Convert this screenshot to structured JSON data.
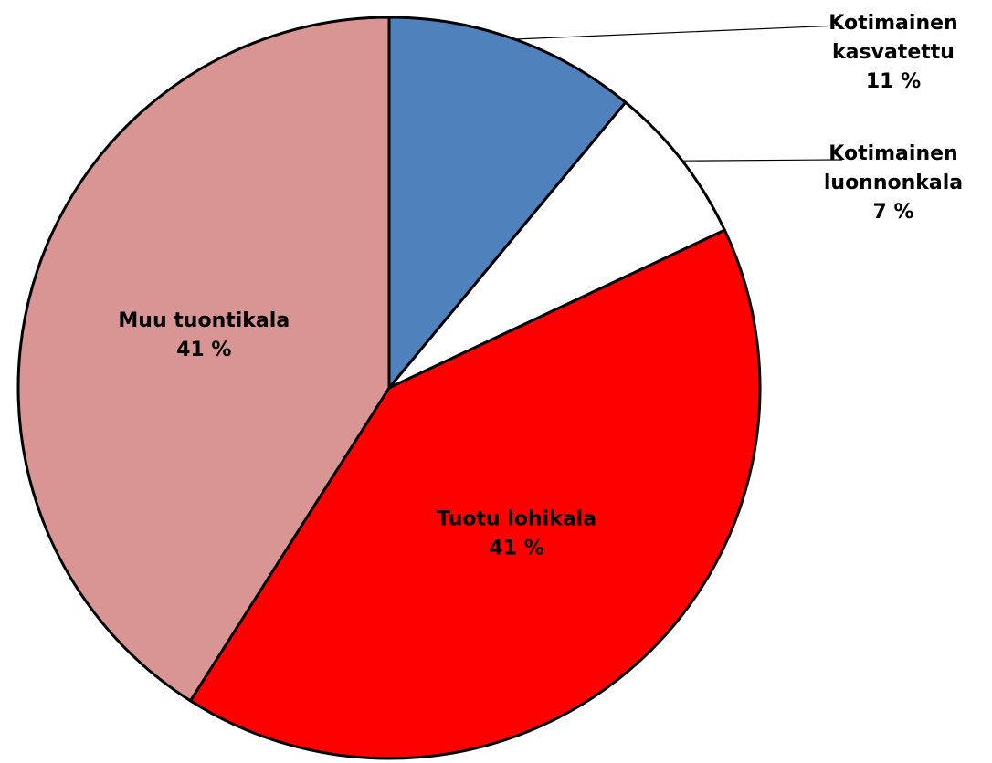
{
  "chart_data": {
    "type": "pie",
    "title": "",
    "categories": [
      "Kotimainen kasvatettu",
      "Kotimainen luonnonkala",
      "Tuotu lohikala",
      "Muu tuontikala"
    ],
    "values": [
      11,
      7,
      41,
      41
    ],
    "unit": "%",
    "colors": [
      "#4f81bd",
      "#ffffff",
      "#ff0000",
      "#d99594"
    ],
    "slices": [
      {
        "name": "Kotimainen kasvatettu",
        "value": 11,
        "label_lines": [
          "Kotimainen",
          "kasvatettu"
        ],
        "value_label": "11 %",
        "color": "#4f81bd",
        "label_placement": "outside"
      },
      {
        "name": "Kotimainen luonnonkala",
        "value": 7,
        "label_lines": [
          "Kotimainen",
          "luonnonkala"
        ],
        "value_label": "7 %",
        "color": "#ffffff",
        "label_placement": "outside"
      },
      {
        "name": "Tuotu lohikala",
        "value": 41,
        "label_lines": [
          "Tuotu lohikala"
        ],
        "value_label": "41 %",
        "color": "#ff0000",
        "label_placement": "inside"
      },
      {
        "name": "Muu tuontikala",
        "value": 41,
        "label_lines": [
          "Muu tuontikala"
        ],
        "value_label": "41 %",
        "color": "#d99594",
        "label_placement": "inside"
      }
    ],
    "legend": "none"
  }
}
